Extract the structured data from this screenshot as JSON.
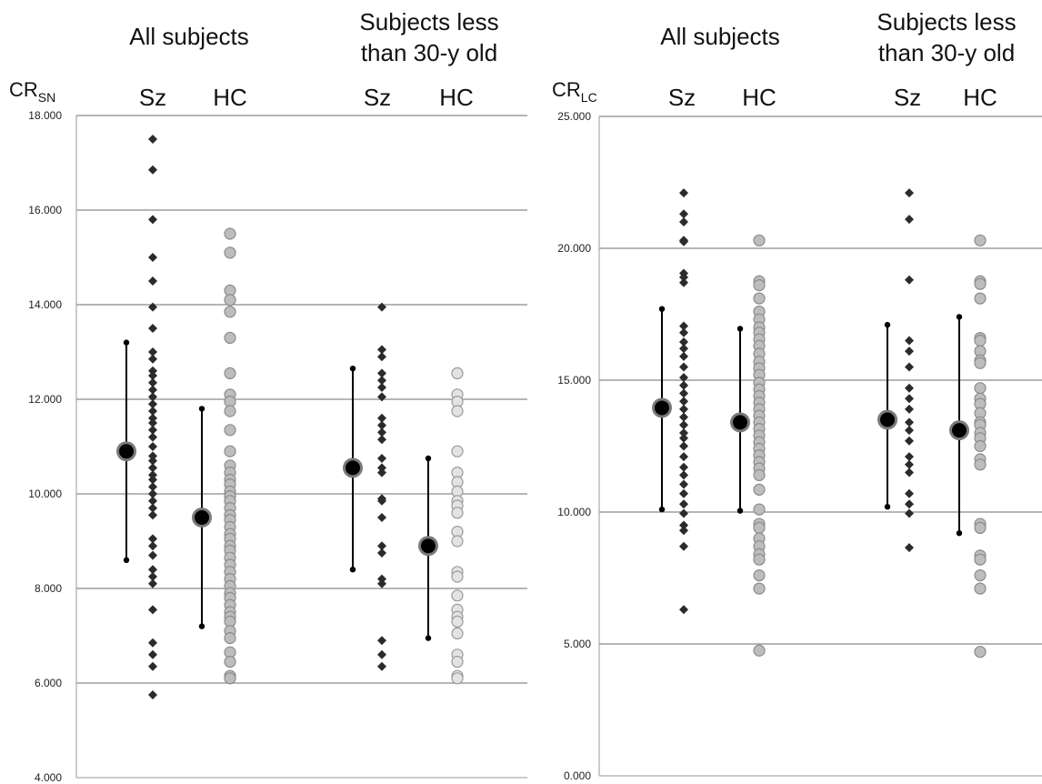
{
  "chart_data": [
    {
      "type": "scatter",
      "ylabel": "CR",
      "ylabel_sub": "SN",
      "ylim": [
        4,
        18
      ],
      "yticks": [
        4,
        6,
        8,
        10,
        12,
        14,
        16,
        18
      ],
      "ytick_labels": [
        "4.000",
        "6.000",
        "8.000",
        "10.000",
        "12.000",
        "14.000",
        "16.000",
        "18.000"
      ],
      "grid": true,
      "sections": [
        {
          "title_lines": [
            "All subjects"
          ],
          "groups": [
            {
              "label": "Sz",
              "marker": "diamond",
              "mean": 10.9,
              "whisker_low": 8.6,
              "whisker_high": 13.2,
              "values": [
                17.5,
                16.85,
                15.8,
                15.0,
                14.5,
                13.95,
                13.5,
                13.0,
                12.85,
                12.6,
                12.5,
                12.35,
                12.2,
                12.05,
                11.9,
                11.75,
                11.6,
                11.5,
                11.35,
                11.2,
                11.0,
                10.8,
                10.7,
                10.55,
                10.4,
                10.3,
                10.15,
                10.0,
                9.85,
                9.7,
                9.55,
                9.05,
                8.9,
                8.7,
                8.4,
                8.25,
                8.1,
                7.55,
                6.85,
                6.6,
                6.35,
                5.75
              ]
            },
            {
              "label": "HC",
              "marker": "circle",
              "mean": 9.5,
              "whisker_low": 7.2,
              "whisker_high": 11.8,
              "values": [
                15.5,
                15.1,
                14.3,
                14.1,
                13.85,
                13.3,
                12.55,
                12.1,
                11.95,
                11.75,
                11.35,
                10.9,
                10.6,
                10.45,
                10.3,
                10.2,
                10.05,
                9.95,
                9.85,
                9.7,
                9.55,
                9.45,
                9.3,
                9.15,
                9.05,
                8.9,
                8.8,
                8.65,
                8.5,
                8.35,
                8.2,
                8.05,
                7.9,
                7.8,
                7.65,
                7.5,
                7.4,
                7.3,
                7.1,
                6.95,
                6.65,
                6.45,
                6.15,
                6.1
              ]
            }
          ]
        },
        {
          "title_lines": [
            "Subjects less",
            "than 30-y old"
          ],
          "groups": [
            {
              "label": "Sz",
              "marker": "diamond",
              "mean": 10.55,
              "whisker_low": 8.4,
              "whisker_high": 12.65,
              "values": [
                13.95,
                13.05,
                12.9,
                12.55,
                12.4,
                12.25,
                12.05,
                11.6,
                11.45,
                11.3,
                11.15,
                10.75,
                10.55,
                10.45,
                9.9,
                9.85,
                9.5,
                8.9,
                8.75,
                8.2,
                8.1,
                6.9,
                6.6,
                6.35
              ]
            },
            {
              "label": "HC",
              "marker": "circle-light",
              "mean": 8.9,
              "whisker_low": 6.95,
              "whisker_high": 10.75,
              "values": [
                12.55,
                12.1,
                11.95,
                11.75,
                10.9,
                10.45,
                10.25,
                10.05,
                9.85,
                9.75,
                9.6,
                9.2,
                9.0,
                8.35,
                8.25,
                7.85,
                7.55,
                7.4,
                7.3,
                7.05,
                6.6,
                6.45,
                6.15,
                6.1
              ]
            }
          ]
        }
      ]
    },
    {
      "type": "scatter",
      "ylabel": "CR",
      "ylabel_sub": "LC",
      "ylim": [
        0,
        25
      ],
      "yticks": [
        0,
        5,
        10,
        15,
        20,
        25
      ],
      "ytick_labels": [
        "0.000",
        "5.000",
        "10.000",
        "15.000",
        "20.000",
        "25.000"
      ],
      "grid": true,
      "sections": [
        {
          "title_lines": [
            "All subjects"
          ],
          "groups": [
            {
              "label": "Sz",
              "marker": "diamond",
              "mean": 13.95,
              "whisker_low": 10.1,
              "whisker_high": 17.7,
              "values": [
                22.1,
                21.3,
                21.0,
                20.3,
                20.25,
                19.05,
                18.9,
                18.7,
                17.05,
                16.8,
                16.45,
                16.2,
                15.9,
                15.5,
                15.1,
                14.8,
                14.5,
                14.2,
                13.9,
                13.6,
                13.3,
                13.0,
                12.8,
                12.5,
                12.1,
                11.7,
                11.4,
                11.05,
                10.7,
                10.3,
                9.95,
                9.5,
                9.3,
                8.7,
                6.3
              ]
            },
            {
              "label": "HC",
              "marker": "circle",
              "mean": 13.4,
              "whisker_low": 10.05,
              "whisker_high": 16.95,
              "values": [
                20.3,
                18.75,
                18.6,
                18.1,
                17.6,
                17.3,
                17.0,
                16.8,
                16.55,
                16.3,
                16.0,
                15.7,
                15.45,
                15.2,
                14.9,
                14.65,
                14.4,
                14.15,
                13.9,
                13.65,
                13.4,
                13.15,
                12.9,
                12.65,
                12.4,
                12.15,
                11.9,
                11.65,
                11.4,
                10.85,
                10.1,
                9.55,
                9.4,
                9.0,
                8.7,
                8.4,
                8.2,
                7.6,
                7.1,
                4.75
              ]
            }
          ]
        },
        {
          "title_lines": [
            "Subjects less",
            "than 30-y old"
          ],
          "groups": [
            {
              "label": "Sz",
              "marker": "diamond",
              "mean": 13.5,
              "whisker_low": 10.2,
              "whisker_high": 17.1,
              "values": [
                22.1,
                21.1,
                18.8,
                16.5,
                16.1,
                15.5,
                14.7,
                14.3,
                13.9,
                13.4,
                13.1,
                12.7,
                12.1,
                11.8,
                11.5,
                10.7,
                10.3,
                9.95,
                8.65
              ]
            },
            {
              "label": "HC",
              "marker": "circle",
              "mean": 13.1,
              "whisker_low": 9.2,
              "whisker_high": 17.4,
              "values": [
                20.3,
                18.75,
                18.65,
                18.1,
                16.6,
                16.5,
                16.1,
                15.75,
                15.65,
                14.7,
                14.3,
                14.1,
                13.75,
                13.4,
                13.3,
                13.0,
                12.8,
                12.5,
                12.0,
                11.8,
                9.55,
                9.4,
                8.35,
                8.2,
                7.6,
                7.1,
                4.7
              ]
            }
          ]
        }
      ]
    }
  ]
}
